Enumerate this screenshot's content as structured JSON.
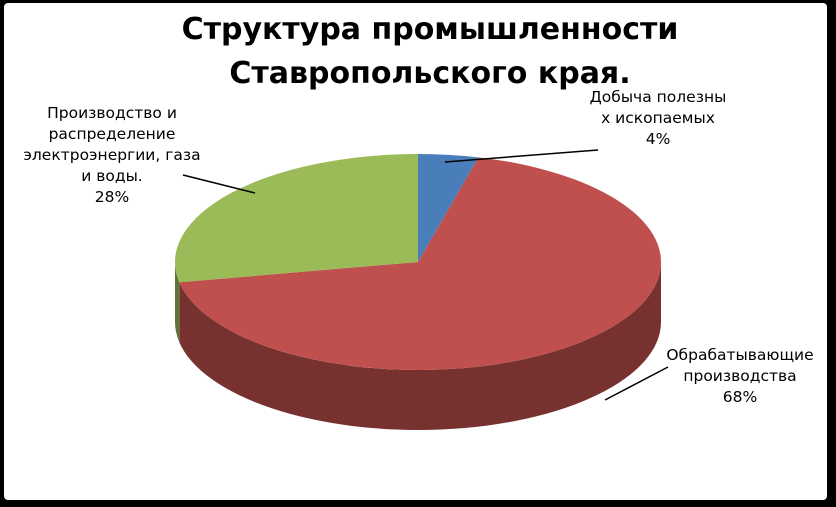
{
  "chart_data": {
    "type": "pie",
    "title": "Структура промышленности Ставропольского края.",
    "categories": [
      "Добыча полезных ископаемых",
      "Обрабатывающие производства",
      "Производство и распределение электроэнергии, газа и воды."
    ],
    "values": [
      4,
      68,
      28
    ],
    "value_labels": [
      "4%",
      "68%",
      "28%"
    ],
    "colors": [
      "#4a7ebb",
      "#c0504d",
      "#9bbb59"
    ]
  }
}
